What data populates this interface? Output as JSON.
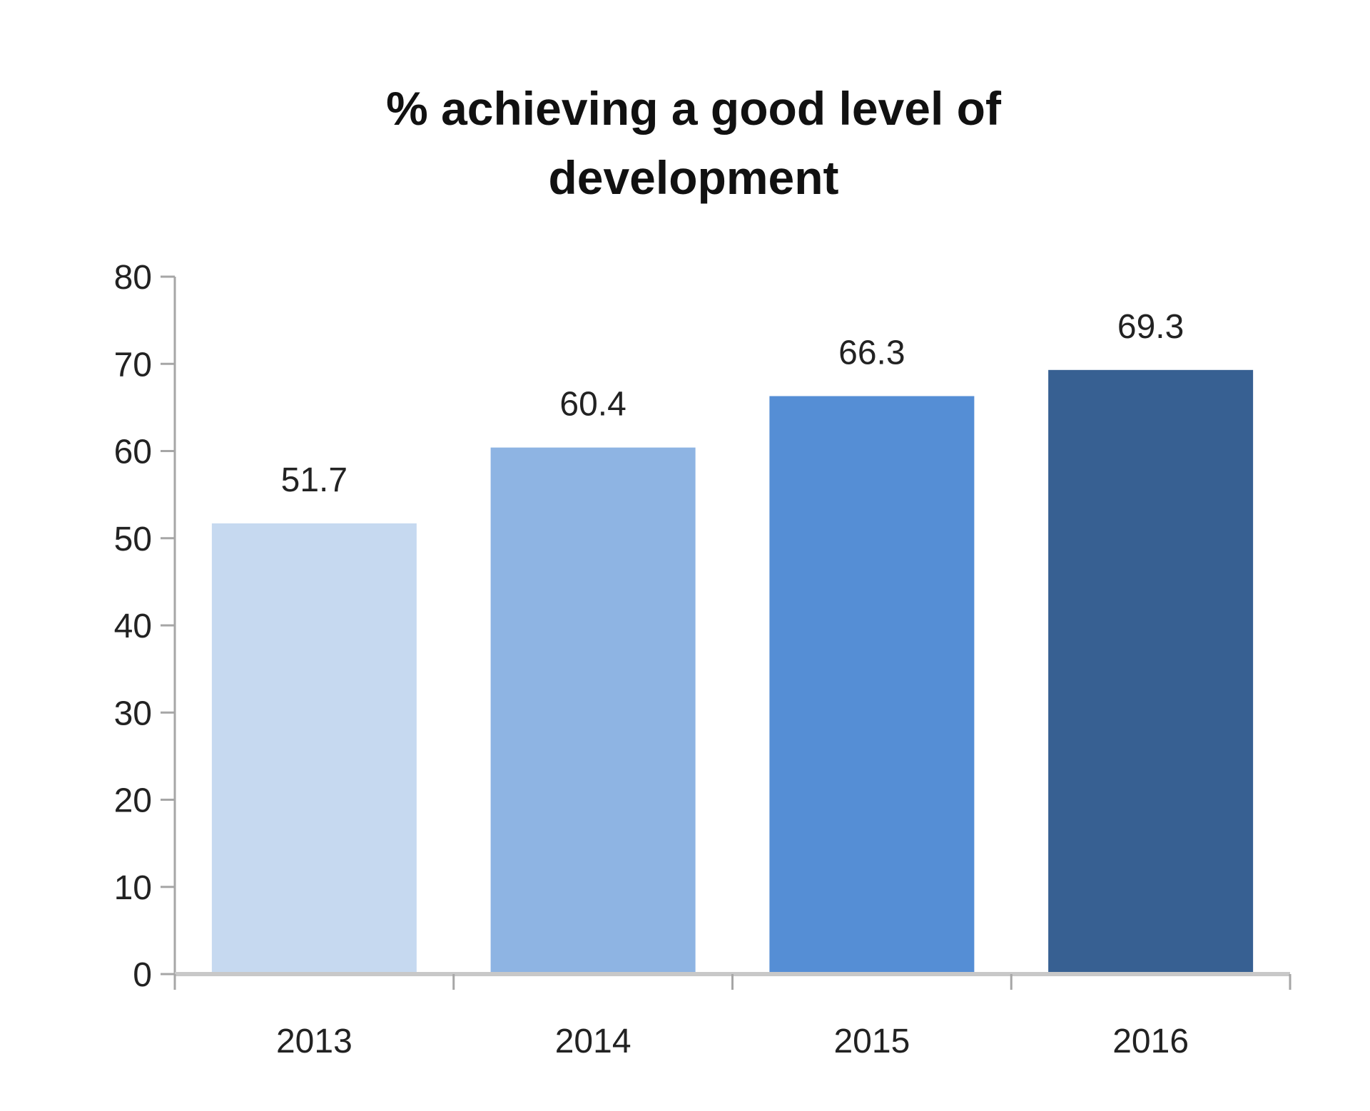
{
  "chart_data": {
    "type": "bar",
    "title": "% achieving a good level of development",
    "title_lines": [
      "% achieving a good level of",
      "development"
    ],
    "categories": [
      "2013",
      "2014",
      "2015",
      "2016"
    ],
    "values": [
      51.7,
      60.4,
      66.3,
      69.3
    ],
    "data_labels": [
      "51.7",
      "60.4",
      "66.3",
      "69.3"
    ],
    "colors": [
      "#c6d9f0",
      "#8eb4e3",
      "#558ed5",
      "#376092"
    ],
    "xlabel": "",
    "ylabel": "",
    "ylim": [
      0,
      80
    ],
    "yticks": [
      0,
      10,
      20,
      30,
      40,
      50,
      60,
      70,
      80
    ],
    "grid": false,
    "legend": "none"
  }
}
